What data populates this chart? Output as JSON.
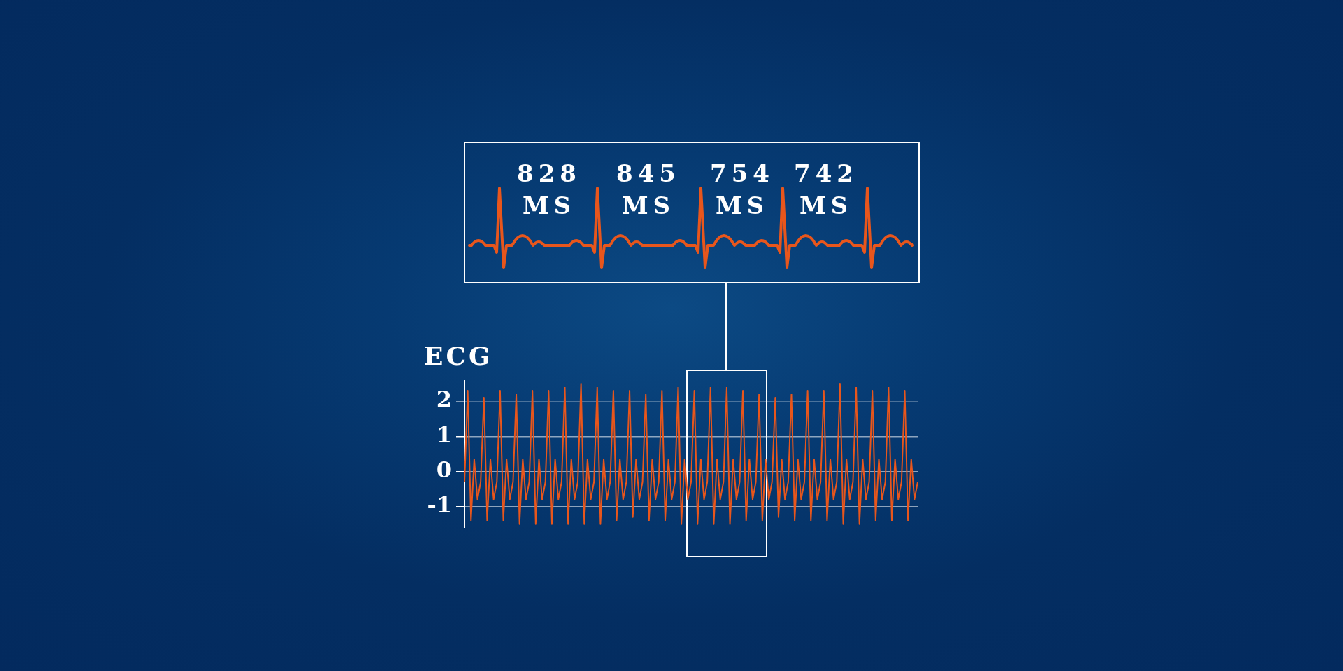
{
  "chart_data": {
    "type": "line",
    "ylabel": "ECG",
    "categories": [
      null,
      null,
      null,
      null,
      null,
      null,
      null,
      null,
      null,
      null,
      null,
      null,
      null,
      null,
      null,
      null,
      null,
      null,
      null,
      null,
      null,
      null,
      null,
      null,
      null,
      null,
      null,
      null,
      null,
      null,
      null,
      null,
      null,
      null,
      null,
      null,
      null,
      null,
      null,
      null,
      null,
      null,
      null,
      null,
      null,
      null,
      null,
      null,
      null,
      null,
      null,
      null,
      null,
      null,
      null,
      null,
      null,
      null,
      null,
      null,
      null,
      null,
      null,
      null,
      null,
      null,
      null,
      null,
      null,
      null,
      null,
      null,
      null,
      null,
      null,
      null,
      null,
      null,
      null,
      null,
      null,
      null,
      null,
      null,
      null,
      null,
      null,
      null,
      null,
      null,
      null,
      null,
      null,
      null,
      null,
      null,
      null,
      null,
      null,
      null,
      null,
      null,
      null,
      null,
      null,
      null,
      null,
      null,
      null,
      null,
      null,
      null,
      null,
      null,
      null,
      null,
      null,
      null,
      null,
      null,
      null,
      null,
      null,
      null,
      null,
      null,
      null,
      null,
      null,
      null,
      null,
      null,
      null,
      null,
      null,
      null,
      null,
      null,
      null,
      null,
      null
    ],
    "series": [
      {
        "color": "#e8561c",
        "values": [
          -0.3,
          2.3,
          -1.4,
          0.35,
          -0.8,
          -0.3,
          2.1,
          -1.4,
          0.35,
          -0.8,
          -0.3,
          2.3,
          -1.4,
          0.35,
          -0.8,
          -0.3,
          2.2,
          -1.5,
          0.35,
          -0.8,
          -0.3,
          2.3,
          -1.5,
          0.35,
          -0.8,
          -0.3,
          2.3,
          -1.5,
          0.35,
          -0.8,
          -0.3,
          2.4,
          -1.5,
          0.35,
          -0.8,
          -0.3,
          2.5,
          -1.5,
          0.35,
          -0.8,
          -0.3,
          2.4,
          -1.5,
          0.35,
          -0.8,
          -0.3,
          2.3,
          -1.4,
          0.35,
          -0.8,
          -0.3,
          2.3,
          -1.3,
          0.35,
          -0.8,
          -0.3,
          2.2,
          -1.4,
          0.35,
          -0.8,
          -0.3,
          2.3,
          -1.4,
          0.35,
          -0.8,
          -0.3,
          2.4,
          -1.5,
          0.35,
          -0.8,
          -0.3,
          2.3,
          -1.5,
          0.35,
          -0.8,
          -0.3,
          2.4,
          -1.5,
          0.35,
          -0.8,
          -0.3,
          2.4,
          -1.5,
          0.35,
          -0.8,
          -0.3,
          2.3,
          -1.4,
          0.35,
          -0.8,
          -0.3,
          2.2,
          -1.4,
          0.35,
          -0.8,
          -0.3,
          2.1,
          -1.3,
          0.35,
          -0.8,
          -0.3,
          2.2,
          -1.4,
          0.35,
          -0.8,
          -0.3,
          2.3,
          -1.4,
          0.35,
          -0.8,
          -0.3,
          2.3,
          -1.4,
          0.35,
          -0.8,
          -0.3,
          2.5,
          -1.5,
          0.35,
          -0.8,
          -0.3,
          2.4,
          -1.5,
          0.35,
          -0.8,
          -0.3,
          2.3,
          -1.4,
          0.35,
          -0.8,
          -0.3,
          2.4,
          -1.4,
          0.35,
          -0.8,
          -0.3,
          2.3,
          -1.4,
          0.35,
          -0.8,
          -0.3
        ]
      }
    ],
    "ylim": [
      -1.6,
      2.6
    ],
    "yticks": [
      -1,
      0,
      1,
      2
    ],
    "grid": "y",
    "tick_labels": "y",
    "marker": "none",
    "line_style": "solid",
    "annotations": [
      "828 MS",
      "845 MS",
      "754 MS",
      "742 MS"
    ]
  }
}
